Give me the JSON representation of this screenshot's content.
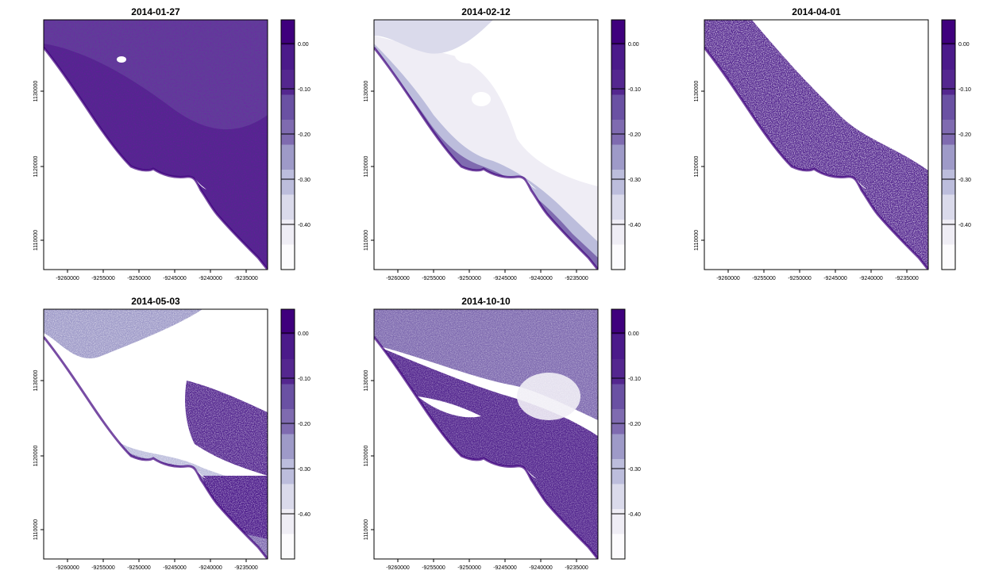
{
  "panels": [
    {
      "title": "2014-01-27",
      "pattern": "dense-dark"
    },
    {
      "title": "2014-02-12",
      "pattern": "light-offshore"
    },
    {
      "title": "2014-04-01",
      "pattern": "speckled"
    },
    {
      "title": "2014-05-03",
      "pattern": "light-mixed"
    },
    {
      "title": "2014-10-10",
      "pattern": "land-patchy"
    }
  ],
  "x_axis": {
    "ticks": [
      "-9260000",
      "-9255000",
      "-9250000",
      "-9245000",
      "-9240000",
      "-9235000"
    ]
  },
  "y_axis": {
    "ticks": [
      "1130000",
      "1120000",
      "1110000"
    ]
  },
  "legend": {
    "labels": [
      "0.00",
      "-0.10",
      "-0.20",
      "-0.30",
      "-0.40"
    ],
    "colors": [
      "#3f007d",
      "#4b1a8a",
      "#54278f",
      "#6a51a3",
      "#7f6bb0",
      "#9e9ac8",
      "#bcbddc",
      "#dadaeb",
      "#efedf5",
      "#fcfbfd"
    ]
  }
}
